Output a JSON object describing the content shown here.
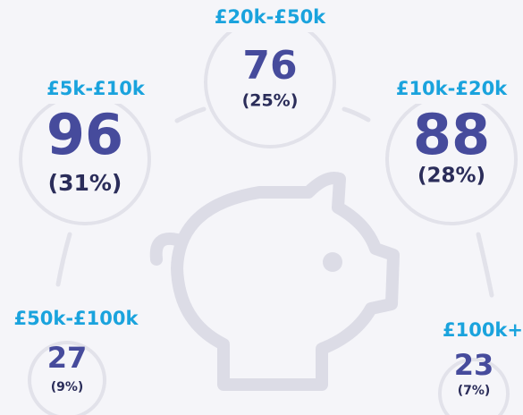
{
  "items": [
    {
      "label": "£20k-£50k",
      "value": 76,
      "percent": "(25%)"
    },
    {
      "label": "£5k-£10k",
      "value": 96,
      "percent": "(31%)"
    },
    {
      "label": "£10k-£20k",
      "value": 88,
      "percent": "(28%)"
    },
    {
      "label": "£50k-£100k",
      "value": 27,
      "percent": "(9%)"
    },
    {
      "label": "£100k+",
      "value": 23,
      "percent": "(7%)"
    }
  ]
}
